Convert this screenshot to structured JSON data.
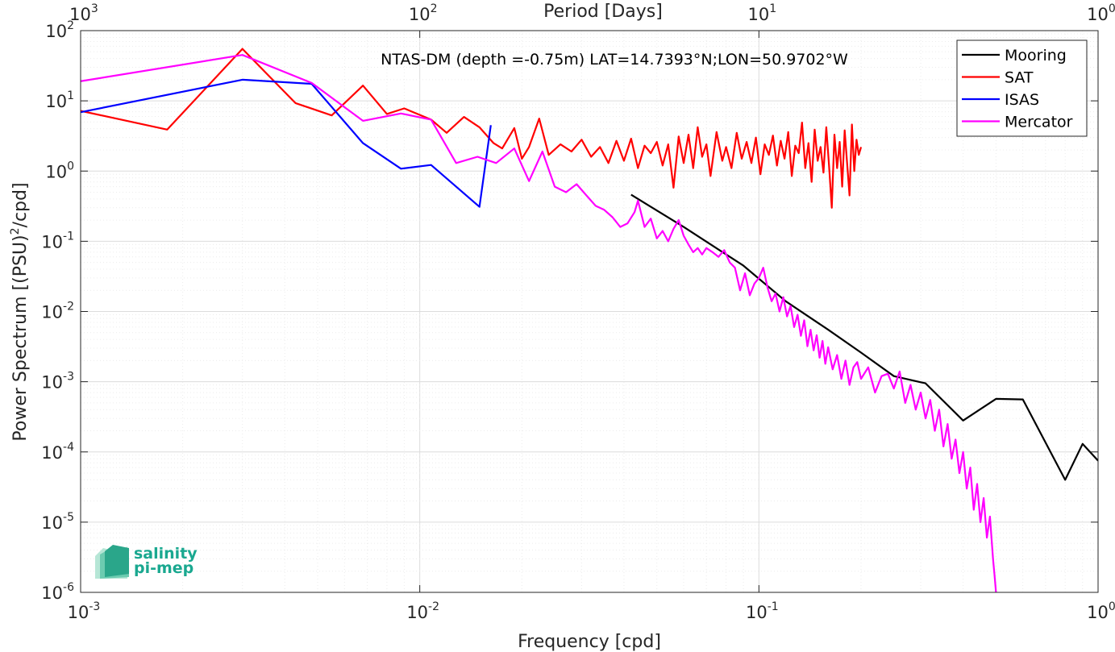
{
  "chart_data": {
    "type": "line",
    "title": "NTAS-DM (depth =-0.75m) LAT=14.7393°N;LON=50.9702°W",
    "xlabel": "Frequency [cpd]",
    "ylabel": "Power Spectrum [(PSU)",
    "ylabel_sup": "2",
    "ylabel_tail": "/cpd]",
    "top_xlabel": "Period [Days]",
    "x_scale": "log",
    "y_scale": "log",
    "xlim": [
      0.001,
      1
    ],
    "ylim": [
      1e-06,
      100
    ],
    "grid": true,
    "legend_position": "top-right",
    "x_ticks": [
      {
        "base": "10",
        "exp": "-3"
      },
      {
        "base": "10",
        "exp": "-2"
      },
      {
        "base": "10",
        "exp": "-1"
      },
      {
        "base": "10",
        "exp": "0"
      }
    ],
    "top_x_ticks": [
      {
        "base": "10",
        "exp": "3"
      },
      {
        "base": "10",
        "exp": "2"
      },
      {
        "base": "10",
        "exp": "1"
      },
      {
        "base": "10",
        "exp": "0"
      }
    ],
    "y_ticks": [
      {
        "base": "10",
        "exp": "-6"
      },
      {
        "base": "10",
        "exp": "-5"
      },
      {
        "base": "10",
        "exp": "-4"
      },
      {
        "base": "10",
        "exp": "-3"
      },
      {
        "base": "10",
        "exp": "-2"
      },
      {
        "base": "10",
        "exp": "-1"
      },
      {
        "base": "10",
        "exp": "0"
      },
      {
        "base": "10",
        "exp": "1"
      },
      {
        "base": "10",
        "exp": "2"
      }
    ],
    "series": [
      {
        "name": "Mooring",
        "color": "#000000",
        "points": [
          [
            0.042,
            0.46
          ],
          [
            0.06,
            0.16
          ],
          [
            0.09,
            0.045
          ],
          [
            0.12,
            0.014
          ],
          [
            0.16,
            0.0055
          ],
          [
            0.2,
            0.0026
          ],
          [
            0.25,
            0.0012
          ],
          [
            0.31,
            0.00095
          ],
          [
            0.4,
            0.00028
          ],
          [
            0.5,
            0.00057
          ],
          [
            0.6,
            0.00056
          ],
          [
            0.8,
            4e-05
          ],
          [
            0.9,
            0.00013
          ],
          [
            1.0,
            7.5e-05
          ]
        ]
      },
      {
        "name": "SAT",
        "color": "#ff0000",
        "points": [
          [
            0.001,
            7.2
          ],
          [
            0.0018,
            3.9
          ],
          [
            0.003,
            55
          ],
          [
            0.0043,
            9.3
          ],
          [
            0.0055,
            6.2
          ],
          [
            0.0068,
            16.5
          ],
          [
            0.008,
            6.5
          ],
          [
            0.009,
            7.8
          ],
          [
            0.0108,
            5.4
          ],
          [
            0.012,
            3.5
          ],
          [
            0.0135,
            5.9
          ],
          [
            0.015,
            4.2
          ],
          [
            0.0165,
            2.5
          ],
          [
            0.0175,
            2.1
          ],
          [
            0.019,
            4.1
          ],
          [
            0.02,
            1.5
          ],
          [
            0.021,
            2.2
          ],
          [
            0.0225,
            5.6
          ],
          [
            0.024,
            1.7
          ],
          [
            0.026,
            2.4
          ],
          [
            0.028,
            1.9
          ],
          [
            0.03,
            2.8
          ],
          [
            0.032,
            1.6
          ],
          [
            0.034,
            2.2
          ],
          [
            0.036,
            1.3
          ],
          [
            0.038,
            2.7
          ],
          [
            0.04,
            1.4
          ],
          [
            0.042,
            2.9
          ],
          [
            0.044,
            1.1
          ],
          [
            0.046,
            2.3
          ],
          [
            0.048,
            1.8
          ],
          [
            0.05,
            2.6
          ],
          [
            0.052,
            1.2
          ],
          [
            0.054,
            2.4
          ],
          [
            0.056,
            0.58
          ],
          [
            0.058,
            3.1
          ],
          [
            0.06,
            1.3
          ],
          [
            0.062,
            3.3
          ],
          [
            0.064,
            1.1
          ],
          [
            0.066,
            4.2
          ],
          [
            0.068,
            1.6
          ],
          [
            0.07,
            2.4
          ],
          [
            0.072,
            0.85
          ],
          [
            0.075,
            3.6
          ],
          [
            0.078,
            1.4
          ],
          [
            0.08,
            2.2
          ],
          [
            0.083,
            1.1
          ],
          [
            0.086,
            3.5
          ],
          [
            0.089,
            1.5
          ],
          [
            0.092,
            2.6
          ],
          [
            0.095,
            1.3
          ],
          [
            0.098,
            3.0
          ],
          [
            0.101,
            0.9
          ],
          [
            0.104,
            2.4
          ],
          [
            0.107,
            1.7
          ],
          [
            0.11,
            3.2
          ],
          [
            0.113,
            1.2
          ],
          [
            0.116,
            2.7
          ],
          [
            0.119,
            1.5
          ],
          [
            0.122,
            3.6
          ],
          [
            0.125,
            0.85
          ],
          [
            0.128,
            2.3
          ],
          [
            0.131,
            1.8
          ],
          [
            0.134,
            4.9
          ],
          [
            0.137,
            1.1
          ],
          [
            0.14,
            2.5
          ],
          [
            0.143,
            0.7
          ],
          [
            0.146,
            3.9
          ],
          [
            0.149,
            1.4
          ],
          [
            0.152,
            2.2
          ],
          [
            0.155,
            0.95
          ],
          [
            0.158,
            4.2
          ],
          [
            0.161,
            1.2
          ],
          [
            0.164,
            0.3
          ],
          [
            0.167,
            3.3
          ],
          [
            0.17,
            1.1
          ],
          [
            0.173,
            2.6
          ],
          [
            0.176,
            0.6
          ],
          [
            0.179,
            3.8
          ],
          [
            0.182,
            1.3
          ],
          [
            0.185,
            0.45
          ],
          [
            0.188,
            4.6
          ],
          [
            0.191,
            1.0
          ],
          [
            0.194,
            2.8
          ],
          [
            0.197,
            1.7
          ],
          [
            0.2,
            2.2
          ]
        ]
      },
      {
        "name": "ISAS",
        "color": "#0000ff",
        "points": [
          [
            0.001,
            6.9
          ],
          [
            0.003,
            20
          ],
          [
            0.0048,
            17.5
          ],
          [
            0.0068,
            2.5
          ],
          [
            0.0088,
            1.08
          ],
          [
            0.0108,
            1.22
          ],
          [
            0.015,
            0.31
          ],
          [
            0.0162,
            4.5
          ]
        ]
      },
      {
        "name": "Mercator",
        "color": "#ff00ff",
        "points": [
          [
            0.001,
            19
          ],
          [
            0.003,
            45
          ],
          [
            0.0048,
            18
          ],
          [
            0.0068,
            5.2
          ],
          [
            0.0088,
            6.6
          ],
          [
            0.0108,
            5.4
          ],
          [
            0.0128,
            1.3
          ],
          [
            0.0148,
            1.6
          ],
          [
            0.0168,
            1.3
          ],
          [
            0.019,
            2.1
          ],
          [
            0.021,
            0.72
          ],
          [
            0.023,
            1.9
          ],
          [
            0.025,
            0.6
          ],
          [
            0.027,
            0.5
          ],
          [
            0.029,
            0.65
          ],
          [
            0.031,
            0.45
          ],
          [
            0.033,
            0.32
          ],
          [
            0.035,
            0.28
          ],
          [
            0.037,
            0.22
          ],
          [
            0.039,
            0.16
          ],
          [
            0.041,
            0.18
          ],
          [
            0.043,
            0.26
          ],
          [
            0.044,
            0.38
          ],
          [
            0.046,
            0.16
          ],
          [
            0.048,
            0.21
          ],
          [
            0.05,
            0.11
          ],
          [
            0.052,
            0.14
          ],
          [
            0.054,
            0.1
          ],
          [
            0.056,
            0.15
          ],
          [
            0.058,
            0.2
          ],
          [
            0.06,
            0.12
          ],
          [
            0.062,
            0.09
          ],
          [
            0.064,
            0.07
          ],
          [
            0.066,
            0.08
          ],
          [
            0.068,
            0.065
          ],
          [
            0.07,
            0.08
          ],
          [
            0.073,
            0.07
          ],
          [
            0.076,
            0.06
          ],
          [
            0.079,
            0.075
          ],
          [
            0.082,
            0.05
          ],
          [
            0.085,
            0.042
          ],
          [
            0.088,
            0.02
          ],
          [
            0.091,
            0.035
          ],
          [
            0.094,
            0.017
          ],
          [
            0.097,
            0.025
          ],
          [
            0.1,
            0.03
          ],
          [
            0.103,
            0.042
          ],
          [
            0.106,
            0.022
          ],
          [
            0.109,
            0.014
          ],
          [
            0.112,
            0.018
          ],
          [
            0.115,
            0.01
          ],
          [
            0.118,
            0.016
          ],
          [
            0.121,
            0.0085
          ],
          [
            0.124,
            0.012
          ],
          [
            0.127,
            0.006
          ],
          [
            0.13,
            0.009
          ],
          [
            0.133,
            0.0045
          ],
          [
            0.136,
            0.0075
          ],
          [
            0.139,
            0.0032
          ],
          [
            0.142,
            0.0055
          ],
          [
            0.145,
            0.0028
          ],
          [
            0.148,
            0.0046
          ],
          [
            0.151,
            0.0022
          ],
          [
            0.154,
            0.0038
          ],
          [
            0.157,
            0.0018
          ],
          [
            0.16,
            0.0031
          ],
          [
            0.165,
            0.0015
          ],
          [
            0.17,
            0.0024
          ],
          [
            0.175,
            0.0011
          ],
          [
            0.18,
            0.002
          ],
          [
            0.185,
            0.0009
          ],
          [
            0.19,
            0.0016
          ],
          [
            0.195,
            0.0019
          ],
          [
            0.2,
            0.0011
          ],
          [
            0.21,
            0.0016
          ],
          [
            0.22,
            0.0007
          ],
          [
            0.23,
            0.0012
          ],
          [
            0.24,
            0.0013
          ],
          [
            0.25,
            0.0008
          ],
          [
            0.26,
            0.0014
          ],
          [
            0.27,
            0.0005
          ],
          [
            0.28,
            0.0009
          ],
          [
            0.29,
            0.0004
          ],
          [
            0.3,
            0.0007
          ],
          [
            0.31,
            0.0003
          ],
          [
            0.32,
            0.00055
          ],
          [
            0.33,
            0.0002
          ],
          [
            0.34,
            0.0004
          ],
          [
            0.35,
            0.00012
          ],
          [
            0.36,
            0.00025
          ],
          [
            0.37,
            8e-05
          ],
          [
            0.38,
            0.00015
          ],
          [
            0.39,
            5e-05
          ],
          [
            0.4,
            0.0001
          ],
          [
            0.41,
            3e-05
          ],
          [
            0.42,
            6e-05
          ],
          [
            0.43,
            1.5e-05
          ],
          [
            0.44,
            3.5e-05
          ],
          [
            0.45,
            1e-05
          ],
          [
            0.46,
            2.2e-05
          ],
          [
            0.47,
            6e-06
          ],
          [
            0.48,
            1.2e-05
          ],
          [
            0.49,
            3e-06
          ],
          [
            0.495,
            1.8e-06
          ],
          [
            0.5,
            1e-06
          ]
        ]
      }
    ]
  },
  "logo": {
    "line1": "salinity",
    "line2": "pi-mep",
    "color": "#1aa890"
  }
}
